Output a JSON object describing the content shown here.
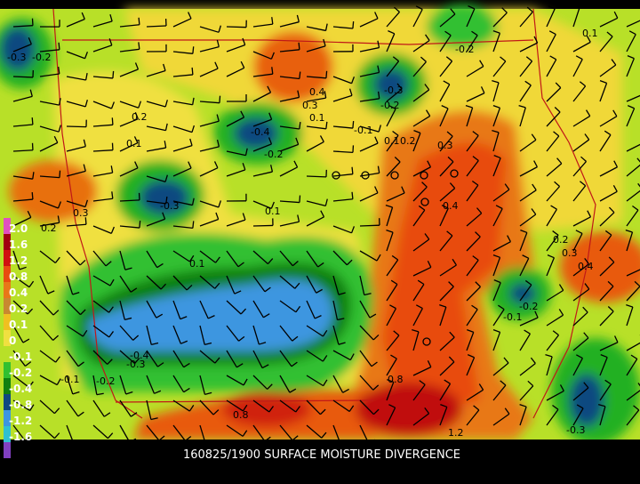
{
  "caption": "160825/1900 SURFACE MOISTURE DIVERGENCE",
  "legend_labels": [
    "2.0",
    "1.6",
    "1.2",
    "0.8",
    "0.4",
    "0.2",
    "0.1",
    "0",
    "-0.1",
    "-0.2",
    "-0.4",
    "-0.8",
    "-1.2",
    "-1.6"
  ],
  "contour_labels": [
    "-0.3",
    "-0.2",
    "0.2",
    "0.1",
    "-0.4",
    "-0.2",
    "0.4",
    "0.3",
    "0.1",
    "-0.3",
    "-0.2",
    "-0.1",
    "0.1",
    "0.2",
    "0.3",
    "0.4",
    "-0.3",
    "0.3",
    "0.2",
    "0.1",
    "0.1",
    "-0.4",
    "-0.3",
    "-0.1",
    "-0.2",
    "0.8",
    "0.8",
    "1.2",
    "-0.1",
    "-0.2",
    "0.2",
    "0.3",
    "0.4",
    "-0.3",
    "-0.2",
    "0.1"
  ]
}
